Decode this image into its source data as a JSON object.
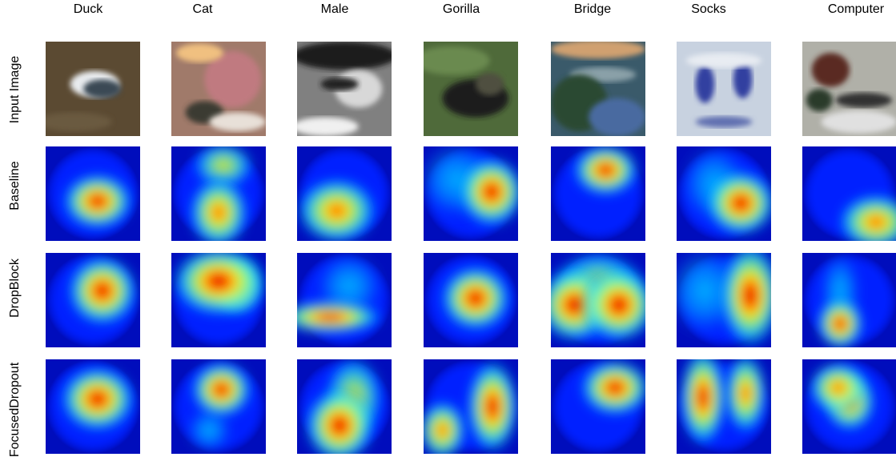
{
  "columns": [
    "Duck",
    "Cat",
    "Male",
    "Gorilla",
    "Bridge",
    "Socks",
    "Computer"
  ],
  "rows": [
    "Input Image",
    "Baseline",
    "DropBlock",
    "FocusedDropout"
  ],
  "colors": {
    "heat_deep": "#00008f",
    "heat_blue": "#0020ff",
    "heat_cyan": "#00e0ff",
    "heat_green": "#7fff7f",
    "heat_yellow": "#ffe000",
    "heat_red": "#ff1000",
    "heat_dark_red": "#b00000"
  },
  "photos": [
    {
      "name": "duck-photo",
      "bg": "#5b4a32",
      "spots": [
        [
          "#e9ecef",
          0.52,
          0.45,
          0.26,
          0.14
        ],
        [
          "#3a4a55",
          0.6,
          0.5,
          0.2,
          0.1
        ],
        [
          "#6b5a40",
          0.3,
          0.85,
          0.4,
          0.1
        ]
      ]
    },
    {
      "name": "cat-photo",
      "bg": "#a07a6a",
      "spots": [
        [
          "#c07a80",
          0.65,
          0.4,
          0.3,
          0.3
        ],
        [
          "#f0c080",
          0.3,
          0.12,
          0.25,
          0.1
        ],
        [
          "#3a3a30",
          0.35,
          0.75,
          0.2,
          0.12
        ],
        [
          "#e8e0d8",
          0.7,
          0.85,
          0.3,
          0.1
        ]
      ]
    },
    {
      "name": "male-photo",
      "bg": "#808080",
      "spots": [
        [
          "#1a1a1a",
          0.5,
          0.15,
          0.55,
          0.15
        ],
        [
          "#d8d8d8",
          0.65,
          0.5,
          0.25,
          0.2
        ],
        [
          "#202020",
          0.45,
          0.45,
          0.2,
          0.07
        ],
        [
          "#f0f0f0",
          0.3,
          0.9,
          0.35,
          0.1
        ]
      ]
    },
    {
      "name": "gorilla-photo",
      "bg": "#4f6a3a",
      "spots": [
        [
          "#1a1a1a",
          0.55,
          0.6,
          0.35,
          0.2
        ],
        [
          "#6a8a50",
          0.3,
          0.2,
          0.4,
          0.15
        ],
        [
          "#505040",
          0.7,
          0.45,
          0.15,
          0.12
        ]
      ]
    },
    {
      "name": "bridge-photo",
      "bg": "#3a5a6a",
      "spots": [
        [
          "#d0a070",
          0.5,
          0.08,
          0.5,
          0.1
        ],
        [
          "#8aa0a8",
          0.55,
          0.35,
          0.35,
          0.08
        ],
        [
          "#2a4a30",
          0.3,
          0.65,
          0.3,
          0.3
        ],
        [
          "#4a6aa0",
          0.7,
          0.8,
          0.3,
          0.2
        ]
      ]
    },
    {
      "name": "socks-photo",
      "bg": "#c8d2e0",
      "spots": [
        [
          "#3040a0",
          0.3,
          0.45,
          0.1,
          0.2
        ],
        [
          "#3040a0",
          0.7,
          0.4,
          0.1,
          0.2
        ],
        [
          "#e8ecf2",
          0.5,
          0.2,
          0.4,
          0.08
        ],
        [
          "#6070b0",
          0.5,
          0.85,
          0.3,
          0.06
        ]
      ]
    },
    {
      "name": "computer-photo",
      "bg": "#b0b0a8",
      "spots": [
        [
          "#5a2a20",
          0.3,
          0.3,
          0.2,
          0.18
        ],
        [
          "#2a3a2a",
          0.18,
          0.62,
          0.14,
          0.12
        ],
        [
          "#303030",
          0.65,
          0.62,
          0.3,
          0.08
        ],
        [
          "#e0e0e0",
          0.6,
          0.85,
          0.4,
          0.12
        ]
      ]
    }
  ],
  "heatmaps": [
    [
      {
        "blobs": [
          [
            0.55,
            0.58,
            0.3,
            0.24,
            1.0
          ]
        ]
      },
      {
        "blobs": [
          [
            0.5,
            0.7,
            0.25,
            0.3,
            0.95
          ],
          [
            0.55,
            0.2,
            0.26,
            0.2,
            0.75
          ]
        ]
      },
      {
        "blobs": [
          [
            0.42,
            0.68,
            0.34,
            0.28,
            0.95
          ]
        ]
      },
      {
        "blobs": [
          [
            0.72,
            0.48,
            0.28,
            0.3,
            1.0
          ],
          [
            0.35,
            0.35,
            0.35,
            0.35,
            0.4
          ]
        ]
      },
      {
        "blobs": [
          [
            0.58,
            0.25,
            0.28,
            0.22,
            1.0
          ]
        ]
      },
      {
        "blobs": [
          [
            0.68,
            0.6,
            0.3,
            0.28,
            1.0
          ],
          [
            0.4,
            0.4,
            0.3,
            0.35,
            0.45
          ]
        ]
      },
      {
        "blobs": [
          [
            0.78,
            0.8,
            0.32,
            0.24,
            0.95
          ]
        ]
      }
    ],
    [
      {
        "blobs": [
          [
            0.6,
            0.4,
            0.3,
            0.3,
            1.05
          ]
        ]
      },
      {
        "blobs": [
          [
            0.5,
            0.3,
            0.4,
            0.3,
            1.0
          ],
          [
            0.7,
            0.35,
            0.22,
            0.25,
            0.9
          ]
        ]
      },
      {
        "blobs": [
          [
            0.35,
            0.68,
            0.45,
            0.14,
            1.0
          ],
          [
            0.55,
            0.35,
            0.3,
            0.3,
            0.4
          ]
        ]
      },
      {
        "blobs": [
          [
            0.55,
            0.48,
            0.3,
            0.28,
            1.0
          ]
        ]
      },
      {
        "blobs": [
          [
            0.25,
            0.55,
            0.32,
            0.32,
            1.0
          ],
          [
            0.72,
            0.55,
            0.32,
            0.32,
            1.0
          ],
          [
            0.5,
            0.35,
            0.4,
            0.3,
            0.7
          ]
        ]
      },
      {
        "blobs": [
          [
            0.78,
            0.45,
            0.26,
            0.45,
            1.0
          ],
          [
            0.3,
            0.4,
            0.35,
            0.4,
            0.55
          ]
        ]
      },
      {
        "blobs": [
          [
            0.4,
            0.75,
            0.2,
            0.22,
            1.0
          ],
          [
            0.4,
            0.4,
            0.18,
            0.35,
            0.6
          ]
        ]
      }
    ],
    [
      {
        "blobs": [
          [
            0.55,
            0.42,
            0.32,
            0.28,
            1.05
          ]
        ]
      },
      {
        "blobs": [
          [
            0.53,
            0.32,
            0.26,
            0.24,
            1.0
          ],
          [
            0.4,
            0.75,
            0.2,
            0.2,
            0.5
          ]
        ]
      },
      {
        "blobs": [
          [
            0.45,
            0.7,
            0.3,
            0.32,
            1.0
          ],
          [
            0.6,
            0.4,
            0.25,
            0.35,
            0.7
          ]
        ]
      },
      {
        "blobs": [
          [
            0.2,
            0.75,
            0.2,
            0.25,
            0.95
          ],
          [
            0.73,
            0.5,
            0.22,
            0.4,
            1.0
          ]
        ]
      },
      {
        "blobs": [
          [
            0.68,
            0.3,
            0.3,
            0.24,
            1.05
          ]
        ]
      },
      {
        "blobs": [
          [
            0.28,
            0.4,
            0.2,
            0.42,
            1.0
          ],
          [
            0.73,
            0.36,
            0.18,
            0.34,
            0.95
          ]
        ]
      },
      {
        "blobs": [
          [
            0.38,
            0.3,
            0.25,
            0.22,
            0.95
          ],
          [
            0.5,
            0.45,
            0.22,
            0.25,
            0.9
          ]
        ]
      }
    ]
  ]
}
